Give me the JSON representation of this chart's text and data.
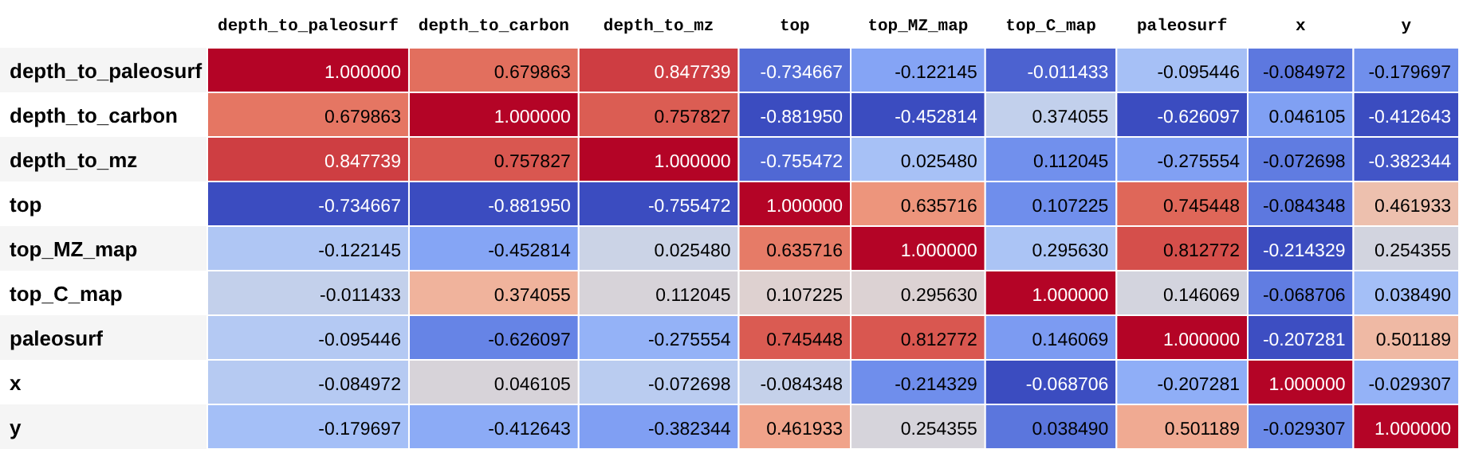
{
  "chart_data": {
    "type": "heatmap",
    "categories": [
      "depth_to_paleosurf",
      "depth_to_carbon",
      "depth_to_mz",
      "top",
      "top_MZ_map",
      "top_C_map",
      "paleosurf",
      "x",
      "y"
    ],
    "y_categories": [
      "depth_to_paleosurf",
      "depth_to_carbon",
      "depth_to_mz",
      "top",
      "top_MZ_map",
      "top_C_map",
      "paleosurf",
      "x",
      "y"
    ],
    "cells": [
      [
        1.0,
        0.679863,
        0.847739,
        -0.734667,
        -0.122145,
        -0.011433,
        -0.095446,
        -0.084972,
        -0.179697
      ],
      [
        0.679863,
        1.0,
        0.757827,
        -0.88195,
        -0.452814,
        0.374055,
        -0.626097,
        0.046105,
        -0.412643
      ],
      [
        0.847739,
        0.757827,
        1.0,
        -0.755472,
        0.02548,
        0.112045,
        -0.275554,
        -0.072698,
        -0.382344
      ],
      [
        -0.734667,
        -0.88195,
        -0.755472,
        1.0,
        0.635716,
        0.107225,
        0.745448,
        -0.084348,
        0.461933
      ],
      [
        -0.122145,
        -0.452814,
        0.02548,
        0.635716,
        1.0,
        0.29563,
        0.812772,
        -0.214329,
        0.254355
      ],
      [
        -0.011433,
        0.374055,
        0.112045,
        0.107225,
        0.29563,
        1.0,
        0.146069,
        -0.068706,
        0.03849
      ],
      [
        -0.095446,
        -0.626097,
        -0.275554,
        0.745448,
        0.812772,
        0.146069,
        1.0,
        -0.207281,
        0.501189
      ],
      [
        -0.084972,
        0.046105,
        -0.072698,
        -0.084348,
        -0.214329,
        -0.068706,
        -0.207281,
        1.0,
        -0.029307
      ],
      [
        -0.179697,
        -0.412643,
        -0.382344,
        0.461933,
        0.254355,
        0.03849,
        0.501189,
        -0.029307,
        1.0
      ]
    ],
    "cell_labels": [
      [
        "1.000000",
        "0.679863",
        "0.847739",
        "-0.734667",
        "-0.122145",
        "-0.011433",
        "-0.095446",
        "-0.084972",
        "-0.179697"
      ],
      [
        "0.679863",
        "1.000000",
        "0.757827",
        "-0.881950",
        "-0.452814",
        "0.374055",
        "-0.626097",
        "0.046105",
        "-0.412643"
      ],
      [
        "0.847739",
        "0.757827",
        "1.000000",
        "-0.755472",
        "0.025480",
        "0.112045",
        "-0.275554",
        "-0.072698",
        "-0.382344"
      ],
      [
        "-0.734667",
        "-0.881950",
        "-0.755472",
        "1.000000",
        "0.635716",
        "0.107225",
        "0.745448",
        "-0.084348",
        "0.461933"
      ],
      [
        "-0.122145",
        "-0.452814",
        "0.025480",
        "0.635716",
        "1.000000",
        "0.295630",
        "0.812772",
        "-0.214329",
        "0.254355"
      ],
      [
        "-0.011433",
        "0.374055",
        "0.112045",
        "0.107225",
        "0.295630",
        "1.000000",
        "0.146069",
        "-0.068706",
        "0.038490"
      ],
      [
        "-0.095446",
        "-0.626097",
        "-0.275554",
        "0.745448",
        "0.812772",
        "0.146069",
        "1.000000",
        "-0.207281",
        "0.501189"
      ],
      [
        "-0.084972",
        "0.046105",
        "-0.072698",
        "-0.084348",
        "-0.214329",
        "-0.068706",
        "-0.207281",
        "1.000000",
        "-0.029307"
      ],
      [
        "-0.179697",
        "-0.412643",
        "-0.382344",
        "0.461933",
        "0.254355",
        "0.038490",
        "0.501189",
        "-0.029307",
        "1.000000"
      ]
    ]
  }
}
